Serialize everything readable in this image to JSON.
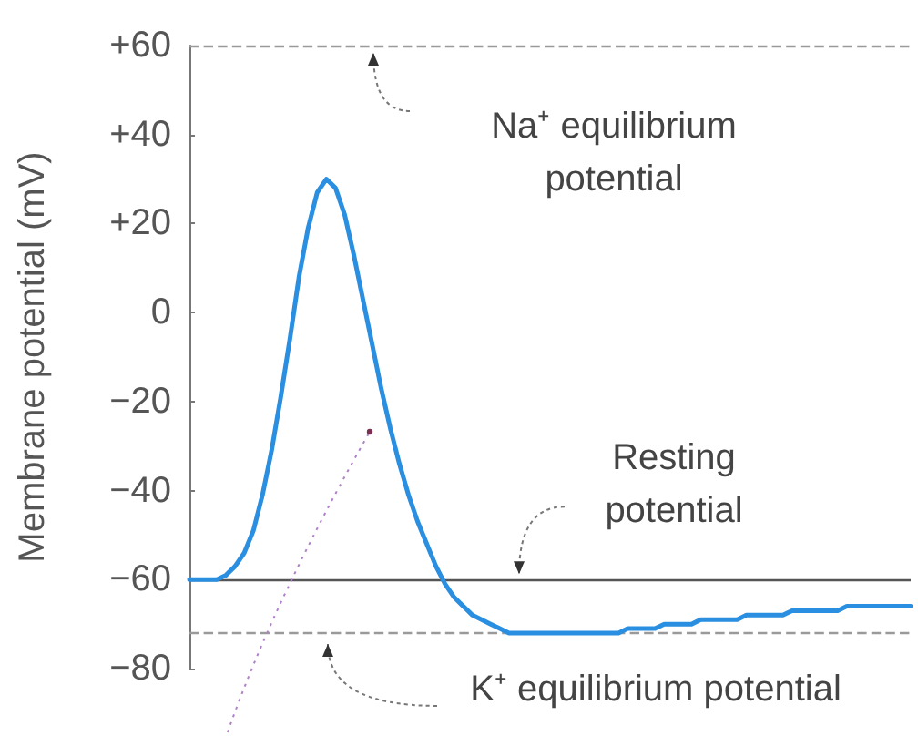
{
  "chart_data": {
    "type": "line",
    "ylabel": "Membrane potential (mV)",
    "categories": [
      null,
      null,
      null,
      null,
      null,
      null,
      null,
      null,
      null,
      null,
      null,
      null,
      null,
      null,
      null,
      null,
      null,
      null,
      null,
      null,
      null,
      null,
      null,
      null,
      null,
      null,
      null,
      null,
      null,
      null,
      null,
      null,
      null,
      null,
      null,
      null,
      null,
      null,
      null,
      null,
      null,
      null,
      null,
      null,
      null,
      null,
      null,
      null,
      null,
      null,
      null,
      null,
      null,
      null,
      null,
      null,
      null,
      null,
      null,
      null,
      null,
      null,
      null,
      null,
      null,
      null,
      null,
      null,
      null,
      null,
      null,
      null,
      null,
      null,
      null,
      null,
      null,
      null,
      null,
      null
    ],
    "series": [
      {
        "color": "#2a8fe0",
        "values": [
          -60,
          -60,
          -60,
          -60,
          -59,
          -57,
          -54,
          -49,
          -41,
          -31,
          -19,
          -6,
          8,
          19,
          27,
          30,
          28,
          22,
          13,
          3,
          -7,
          -17,
          -26,
          -34,
          -41,
          -47,
          -52,
          -57,
          -61,
          -64,
          -66,
          -68,
          -69,
          -70,
          -71,
          -72,
          -72,
          -72,
          -72,
          -72,
          -72,
          -72,
          -72,
          -72,
          -72,
          -72,
          -72,
          -72,
          -71,
          -71,
          -71,
          -71,
          -70,
          -70,
          -70,
          -70,
          -69,
          -69,
          -69,
          -69,
          -69,
          -68,
          -68,
          -68,
          -68,
          -68,
          -67,
          -67,
          -67,
          -67,
          -67,
          -67,
          -66,
          -66,
          -66,
          -66,
          -66,
          -66,
          -66,
          -66
        ]
      }
    ],
    "ylim": [
      -80,
      60
    ],
    "yticks": [
      {
        "value": -80,
        "label": "−80"
      },
      {
        "value": -60,
        "label": "−60"
      },
      {
        "value": -40,
        "label": "−40"
      },
      {
        "value": -20,
        "label": "−20"
      },
      0,
      {
        "value": 20,
        "label": "+20"
      },
      {
        "value": 40,
        "label": "+40"
      },
      {
        "value": 60,
        "label": "+60"
      }
    ],
    "ref_lines": [
      {
        "axis": "y",
        "value": 60,
        "label": "Na⁺ equilibrium potential",
        "color": "#9a9a9a",
        "line_style": "dashed"
      },
      {
        "axis": "y",
        "value": -60,
        "label": "Resting potential",
        "color": "#555555",
        "line_style": "solid"
      },
      {
        "axis": "y",
        "value": -72,
        "label": "K⁺ equilibrium potential",
        "color": "#9a9a9a",
        "line_style": "dashed"
      }
    ],
    "tick_labels": "y",
    "grid": false,
    "marker": "none",
    "line_style": "solid"
  }
}
